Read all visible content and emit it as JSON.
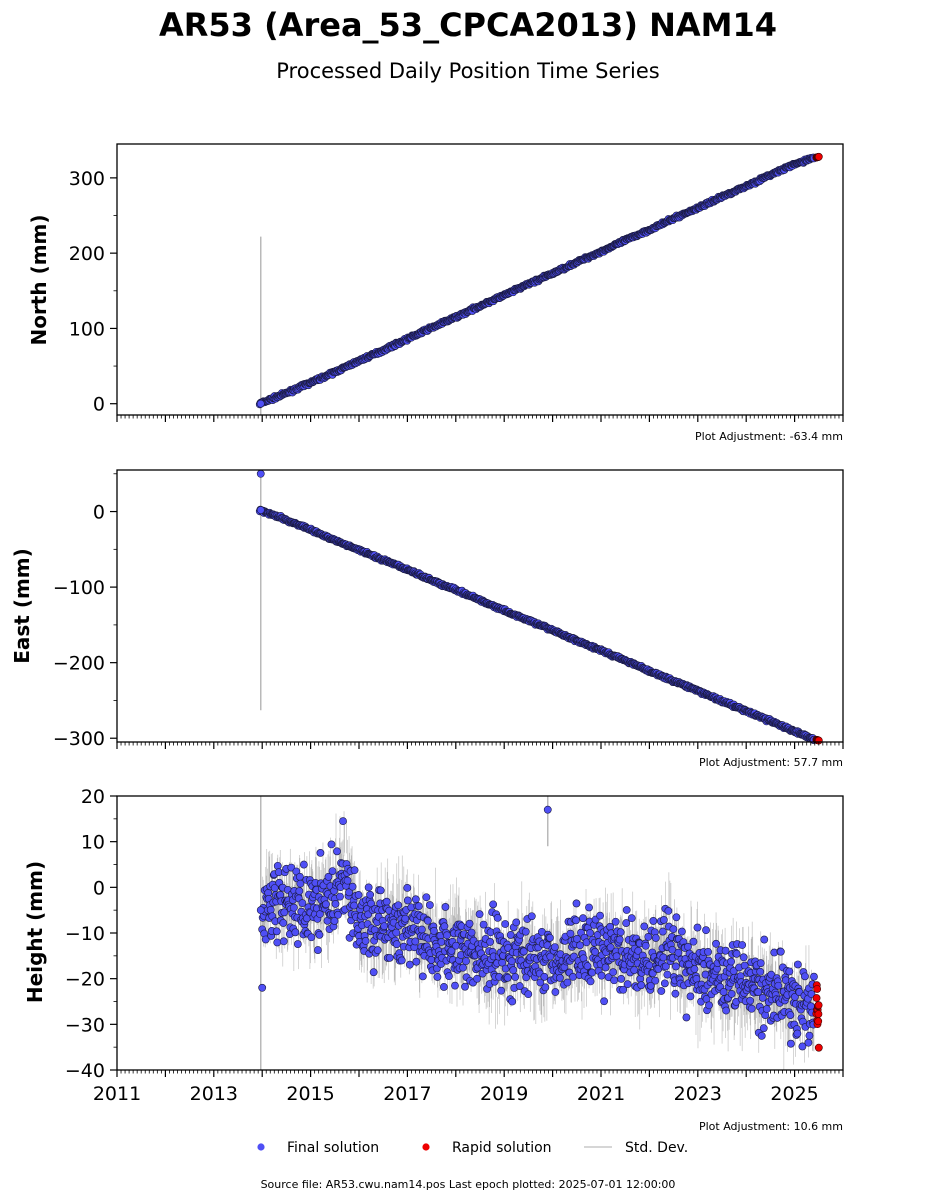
{
  "title": "AR53 (Area_53_CPCA2013) NAM14",
  "subtitle": "Processed Daily Position Time Series",
  "legend": {
    "final": "Final solution",
    "rapid": "Rapid solution",
    "stddev": "Std. Dev."
  },
  "source": "Source file: AR53.cwu.nam14.pos  Last epoch plotted: 2025-07-01 12:00:00",
  "colors": {
    "final": "#4f4ff5",
    "rapid": "#ee0000",
    "stddev": "#b9b9b9"
  },
  "chart_data": [
    {
      "type": "scatter",
      "ylabel": "North (mm)",
      "xlim": [
        2011,
        2026
      ],
      "ylim": [
        -15,
        345
      ],
      "xticks": [
        "2011",
        "2013",
        "2015",
        "2017",
        "2019",
        "2021",
        "2023",
        "2025"
      ],
      "yticks": [
        "0",
        "100",
        "200",
        "300"
      ],
      "adjustment": "Plot Adjustment: -63.4 mm",
      "series": [
        {
          "name": "Final solution",
          "x": [
            2013.95,
            2014.5,
            2015,
            2015.5,
            2016,
            2016.5,
            2017,
            2017.5,
            2018,
            2018.5,
            2019,
            2019.5,
            2020,
            2020.5,
            2021,
            2021.5,
            2022,
            2022.5,
            2023,
            2023.5,
            2024,
            2024.5,
            2025,
            2025.4
          ],
          "y": [
            0,
            14,
            28,
            42,
            57,
            71,
            86,
            101,
            115,
            130,
            144,
            159,
            173,
            188,
            202,
            217,
            231,
            246,
            260,
            275,
            289,
            304,
            318,
            327
          ]
        },
        {
          "name": "Rapid solution",
          "x": [
            2025.45,
            2025.5
          ],
          "y": [
            327,
            328
          ]
        }
      ],
      "outliers": [
        {
          "x": 2013.97,
          "y": 0,
          "err": 222
        }
      ]
    },
    {
      "type": "scatter",
      "ylabel": "East (mm)",
      "xlim": [
        2011,
        2026
      ],
      "ylim": [
        -305,
        55
      ],
      "xticks": [
        "2011",
        "2013",
        "2015",
        "2017",
        "2019",
        "2021",
        "2023",
        "2025"
      ],
      "yticks": [
        "0",
        "−100",
        "−200",
        "−300"
      ],
      "adjustment": "Plot Adjustment: 57.7 mm",
      "series": [
        {
          "name": "Final solution",
          "x": [
            2013.95,
            2014.5,
            2015,
            2015.5,
            2016,
            2016.5,
            2017,
            2017.5,
            2018,
            2018.5,
            2019,
            2019.5,
            2020,
            2020.5,
            2021,
            2021.5,
            2022,
            2022.5,
            2023,
            2023.5,
            2024,
            2024.5,
            2025,
            2025.4
          ],
          "y": [
            2,
            -11,
            -24,
            -38,
            -51,
            -64,
            -77,
            -91,
            -104,
            -117,
            -131,
            -144,
            -157,
            -171,
            -184,
            -197,
            -211,
            -224,
            -237,
            -251,
            -264,
            -277,
            -291,
            -302
          ]
        },
        {
          "name": "Rapid solution",
          "x": [
            2025.45,
            2025.5
          ],
          "y": [
            -302,
            -303
          ]
        }
      ],
      "outliers": [
        {
          "x": 2013.97,
          "y": 50,
          "err": 0
        },
        {
          "x": 2013.97,
          "y": 2,
          "err": 265
        }
      ]
    },
    {
      "type": "scatter",
      "ylabel": "Height (mm)",
      "xlim": [
        2011,
        2026
      ],
      "ylim": [
        -40,
        20
      ],
      "xticks": [
        "2011",
        "2013",
        "2015",
        "2017",
        "2019",
        "2021",
        "2023",
        "2025"
      ],
      "yticks": [
        "20",
        "10",
        "0",
        "−10",
        "−20",
        "−30",
        "−40"
      ],
      "adjustment": "Plot Adjustment: 10.6 mm",
      "series": [
        {
          "name": "Final solution",
          "x": [
            2014,
            2014.5,
            2015,
            2015.5,
            2015.7,
            2016,
            2016.5,
            2017,
            2017.5,
            2018,
            2018.5,
            2019,
            2019.5,
            2020,
            2020.5,
            2021,
            2021.5,
            2022,
            2022.5,
            2023,
            2023.5,
            2024,
            2024.5,
            2025,
            2025.4
          ],
          "y": [
            -5,
            -3,
            -4,
            -2,
            5,
            -8,
            -9,
            -8,
            -13,
            -12,
            -15,
            -16,
            -15,
            -17,
            -15,
            -13,
            -15,
            -16,
            -14,
            -19,
            -20,
            -21,
            -23,
            -24,
            -27
          ]
        },
        {
          "name": "Rapid solution",
          "x": [
            2025.45,
            2025.5
          ],
          "y": [
            -27,
            -29
          ]
        }
      ],
      "outliers": [
        {
          "x": 2019.9,
          "y": 17,
          "err": 8
        },
        {
          "x": 2014.0,
          "y": -22,
          "err": 0
        },
        {
          "x": 2013.97,
          "y": -5,
          "err": 60
        }
      ]
    }
  ]
}
